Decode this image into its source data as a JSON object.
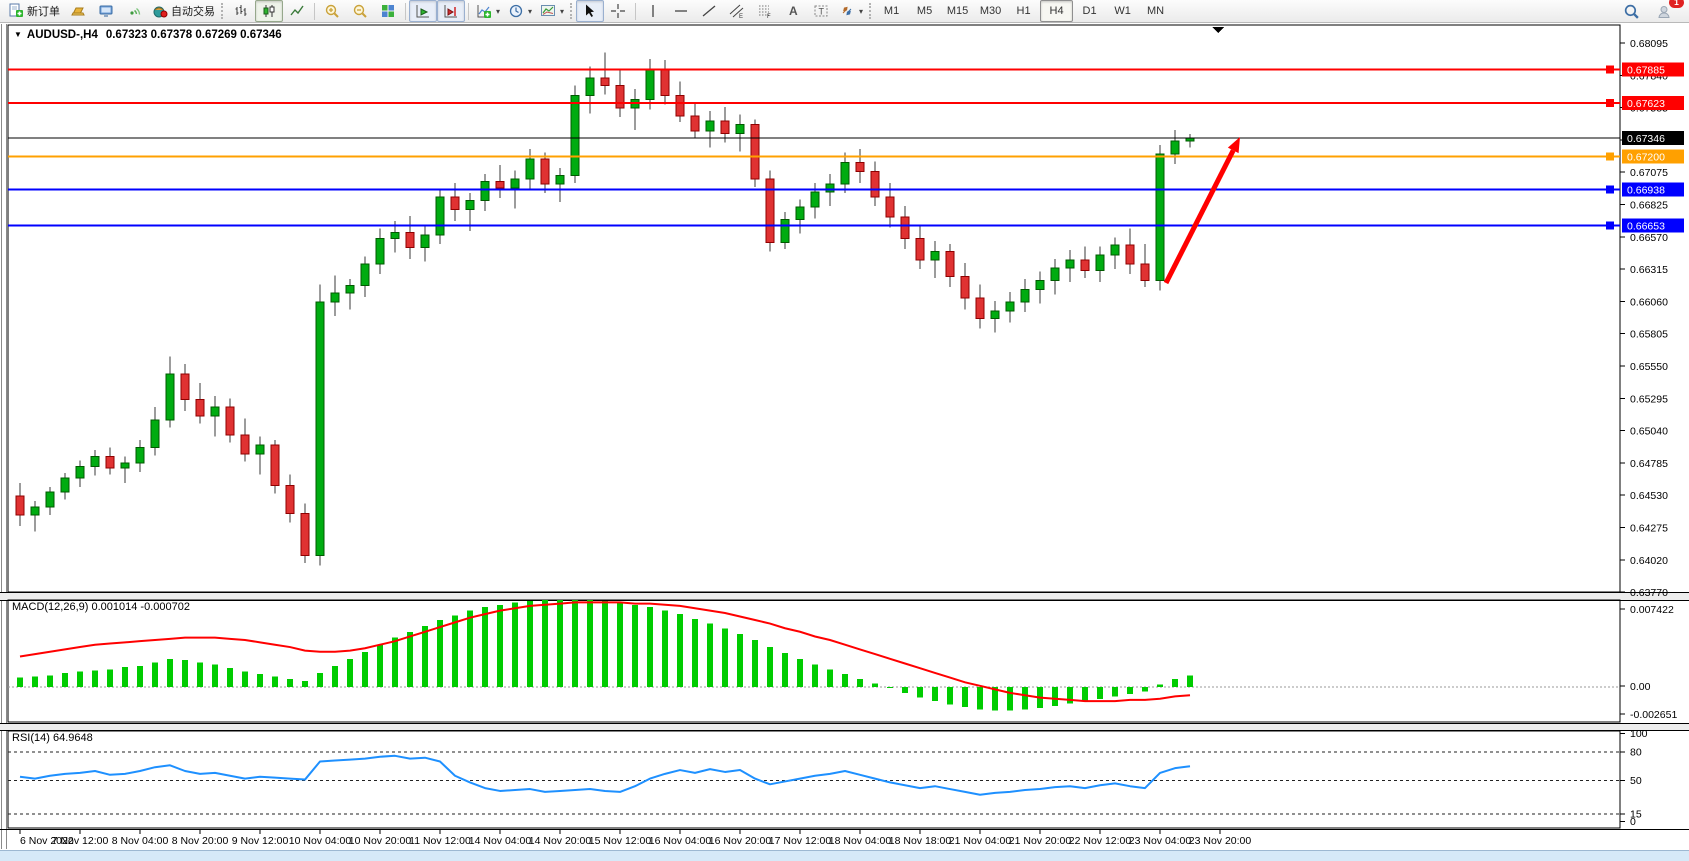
{
  "toolbar": {
    "new_order_label": "新订单",
    "autotrading_label": "自动交易",
    "timeframes": [
      "M1",
      "M5",
      "M15",
      "M30",
      "H1",
      "H4",
      "D1",
      "W1",
      "MN"
    ],
    "active_timeframe": "H4",
    "badge_count": "1"
  },
  "chart": {
    "title_symbol": "AUDUSD-,H4",
    "title_ohlc": "0.67323 0.67378 0.67269 0.67346",
    "dropdown_glyph": "▼"
  },
  "indicators": {
    "macd_label": "MACD(12,26,9) 0.001014 -0.000702",
    "rsi_label": "RSI(14) 64.9648"
  },
  "chart_data": [
    {
      "type": "candlestick",
      "symbol": "AUDUSD-",
      "timeframe": "H4",
      "current_bar": {
        "open": 0.67323,
        "high": 0.67378,
        "low": 0.67269,
        "close": 0.67346
      },
      "y_ticks": [
        "0.68095",
        "0.67840",
        "0.67585",
        "0.67330",
        "0.67075",
        "0.66825",
        "0.66570",
        "0.66315",
        "0.66060",
        "0.65805",
        "0.65550",
        "0.65295",
        "0.65040",
        "0.64785",
        "0.64530",
        "0.64275",
        "0.64020",
        "0.63770"
      ],
      "x_labels": [
        "6 Nov 2022",
        "7 Nov 12:00",
        "8 Nov 04:00",
        "8 Nov 20:00",
        "9 Nov 12:00",
        "10 Nov 04:00",
        "10 Nov 20:00",
        "11 Nov 12:00",
        "14 Nov 04:00",
        "14 Nov 20:00",
        "15 Nov 12:00",
        "16 Nov 04:00",
        "16 Nov 20:00",
        "17 Nov 12:00",
        "18 Nov 04:00",
        "18 Nov 18:00",
        "21 Nov 04:00",
        "21 Nov 20:00",
        "22 Nov 12:00",
        "23 Nov 04:00",
        "23 Nov 20:00"
      ],
      "x_label_step": 4,
      "hlines": [
        {
          "label": "0.67885",
          "price": 0.67885,
          "color": "#FF0000",
          "width": 2,
          "bid": false
        },
        {
          "label": "0.67623",
          "price": 0.67623,
          "color": "#FF0000",
          "width": 2,
          "bid": false
        },
        {
          "label": "0.67346",
          "price": 0.67346,
          "color": "#000000",
          "width": 1,
          "bid": true
        },
        {
          "label": "0.67200",
          "price": 0.672,
          "color": "#FFA000",
          "width": 2,
          "bid": false
        },
        {
          "label": "0.66938",
          "price": 0.66938,
          "color": "#0000FF",
          "width": 2,
          "bid": false
        },
        {
          "label": "0.66653",
          "price": 0.66653,
          "color": "#0000FF",
          "width": 2,
          "bid": false
        }
      ],
      "arrow": {
        "from": [
          1166,
          283
        ],
        "to": [
          1240,
          137
        ],
        "color": "#FF0000"
      },
      "colors": {
        "up": "#00AC11",
        "up_border": "#005a00",
        "down": "#E03232",
        "down_border": "#8f0000",
        "wick": "#3a3a3a"
      },
      "candles": [
        [
          0.6452,
          0.6462,
          0.6428,
          0.6437
        ],
        [
          0.6437,
          0.6448,
          0.6424,
          0.6443
        ],
        [
          0.6443,
          0.6459,
          0.6437,
          0.6455
        ],
        [
          0.6455,
          0.647,
          0.6449,
          0.6466
        ],
        [
          0.6466,
          0.648,
          0.6459,
          0.6475
        ],
        [
          0.6475,
          0.6488,
          0.6468,
          0.6483
        ],
        [
          0.6483,
          0.649,
          0.6469,
          0.6474
        ],
        [
          0.6474,
          0.6483,
          0.6462,
          0.6478
        ],
        [
          0.6478,
          0.6496,
          0.6471,
          0.649
        ],
        [
          0.649,
          0.6522,
          0.6484,
          0.6512
        ],
        [
          0.6512,
          0.6562,
          0.6506,
          0.6548
        ],
        [
          0.6548,
          0.6556,
          0.6519,
          0.6528
        ],
        [
          0.6528,
          0.6541,
          0.6509,
          0.6515
        ],
        [
          0.6515,
          0.6531,
          0.6499,
          0.6522
        ],
        [
          0.6522,
          0.6529,
          0.6494,
          0.65
        ],
        [
          0.65,
          0.6513,
          0.6479,
          0.6485
        ],
        [
          0.6485,
          0.6499,
          0.6469,
          0.6492
        ],
        [
          0.6492,
          0.6496,
          0.6454,
          0.646
        ],
        [
          0.646,
          0.6469,
          0.6431,
          0.6438
        ],
        [
          0.6438,
          0.6446,
          0.6399,
          0.6405
        ],
        [
          0.6405,
          0.6619,
          0.6397,
          0.6605
        ],
        [
          0.6605,
          0.6626,
          0.6594,
          0.6612
        ],
        [
          0.6612,
          0.6623,
          0.6599,
          0.6618
        ],
        [
          0.6618,
          0.6641,
          0.6609,
          0.6635
        ],
        [
          0.6635,
          0.6663,
          0.6627,
          0.6655
        ],
        [
          0.6655,
          0.6669,
          0.6644,
          0.666
        ],
        [
          0.666,
          0.6673,
          0.6639,
          0.6648
        ],
        [
          0.6648,
          0.6666,
          0.6637,
          0.6658
        ],
        [
          0.6658,
          0.6693,
          0.6651,
          0.6688
        ],
        [
          0.6688,
          0.6699,
          0.6669,
          0.6678
        ],
        [
          0.6678,
          0.6691,
          0.6661,
          0.6685
        ],
        [
          0.6685,
          0.6706,
          0.6677,
          0.67
        ],
        [
          0.67,
          0.6713,
          0.6687,
          0.6695
        ],
        [
          0.6695,
          0.6709,
          0.6679,
          0.6702
        ],
        [
          0.6702,
          0.6726,
          0.6694,
          0.6718
        ],
        [
          0.6718,
          0.6723,
          0.6691,
          0.6698
        ],
        [
          0.6698,
          0.6711,
          0.6684,
          0.6705
        ],
        [
          0.6705,
          0.6776,
          0.6699,
          0.6768
        ],
        [
          0.6768,
          0.6791,
          0.6754,
          0.6782
        ],
        [
          0.6782,
          0.6802,
          0.6769,
          0.6776
        ],
        [
          0.6776,
          0.6789,
          0.6751,
          0.6758
        ],
        [
          0.6758,
          0.6773,
          0.6741,
          0.6765
        ],
        [
          0.6765,
          0.6797,
          0.6757,
          0.6788
        ],
        [
          0.6788,
          0.6796,
          0.6761,
          0.6768
        ],
        [
          0.6768,
          0.6779,
          0.6747,
          0.6752
        ],
        [
          0.6752,
          0.6763,
          0.6734,
          0.674
        ],
        [
          0.674,
          0.6756,
          0.6727,
          0.6748
        ],
        [
          0.6748,
          0.6759,
          0.6731,
          0.6738
        ],
        [
          0.6738,
          0.6753,
          0.6724,
          0.6745
        ],
        [
          0.6745,
          0.6749,
          0.6696,
          0.6702
        ],
        [
          0.6702,
          0.6709,
          0.6645,
          0.6652
        ],
        [
          0.6652,
          0.6676,
          0.6647,
          0.667
        ],
        [
          0.667,
          0.6686,
          0.6659,
          0.668
        ],
        [
          0.668,
          0.6699,
          0.6671,
          0.6692
        ],
        [
          0.6692,
          0.6706,
          0.6681,
          0.6698
        ],
        [
          0.6698,
          0.6723,
          0.6691,
          0.6715
        ],
        [
          0.6715,
          0.6726,
          0.6699,
          0.6708
        ],
        [
          0.6708,
          0.6716,
          0.6681,
          0.6688
        ],
        [
          0.6688,
          0.6699,
          0.6664,
          0.6672
        ],
        [
          0.6672,
          0.6681,
          0.6647,
          0.6655
        ],
        [
          0.6655,
          0.6666,
          0.6631,
          0.6638
        ],
        [
          0.6638,
          0.6653,
          0.6624,
          0.6645
        ],
        [
          0.6645,
          0.6651,
          0.6617,
          0.6625
        ],
        [
          0.6625,
          0.6636,
          0.6599,
          0.6608
        ],
        [
          0.6608,
          0.6619,
          0.6584,
          0.6592
        ],
        [
          0.6592,
          0.6606,
          0.6581,
          0.6598
        ],
        [
          0.6598,
          0.6613,
          0.6589,
          0.6605
        ],
        [
          0.6605,
          0.6623,
          0.6597,
          0.6615
        ],
        [
          0.6615,
          0.6629,
          0.6604,
          0.6622
        ],
        [
          0.6622,
          0.6639,
          0.6611,
          0.6632
        ],
        [
          0.6632,
          0.6646,
          0.6621,
          0.6638
        ],
        [
          0.6638,
          0.6649,
          0.6624,
          0.663
        ],
        [
          0.663,
          0.6649,
          0.6621,
          0.6642
        ],
        [
          0.6642,
          0.6656,
          0.6631,
          0.665
        ],
        [
          0.665,
          0.6663,
          0.6627,
          0.6635
        ],
        [
          0.6635,
          0.6651,
          0.6617,
          0.6622
        ],
        [
          0.6622,
          0.6729,
          0.6614,
          0.6722
        ],
        [
          0.6722,
          0.6741,
          0.6714,
          0.6732
        ],
        [
          0.67323,
          0.67378,
          0.67269,
          0.67346
        ]
      ]
    },
    {
      "type": "bar",
      "name": "MACD",
      "params": "12,26,9",
      "value": "0.001014",
      "signal_value": "-0.000702",
      "y_labels": [
        "0.007422",
        "0.00",
        "-0.002651"
      ],
      "colors": {
        "histogram": "#00CC00",
        "signal": "#FF0000"
      },
      "histogram": [
        0.0008,
        0.0009,
        0.001,
        0.0012,
        0.0013,
        0.0014,
        0.0015,
        0.0017,
        0.0018,
        0.0021,
        0.0024,
        0.0023,
        0.0021,
        0.0019,
        0.0016,
        0.0013,
        0.0011,
        0.0009,
        0.0007,
        0.0005,
        0.0012,
        0.0018,
        0.0024,
        0.003,
        0.0036,
        0.0042,
        0.0047,
        0.0052,
        0.0057,
        0.0061,
        0.0065,
        0.0068,
        0.007,
        0.0072,
        0.0073,
        0.0074,
        0.0074,
        0.0074,
        0.0074,
        0.0073,
        0.0072,
        0.007,
        0.0068,
        0.0065,
        0.0062,
        0.0058,
        0.0054,
        0.005,
        0.0045,
        0.004,
        0.0034,
        0.0029,
        0.0024,
        0.0019,
        0.0015,
        0.0011,
        0.0007,
        0.0003,
        -0.0001,
        -0.0005,
        -0.0009,
        -0.0012,
        -0.0015,
        -0.0017,
        -0.0019,
        -0.002,
        -0.002,
        -0.0019,
        -0.0018,
        -0.0016,
        -0.0014,
        -0.0012,
        -0.001,
        -0.0008,
        -0.0006,
        -0.0004,
        0.0002,
        0.0007,
        0.001
      ],
      "signal": [
        0.0026,
        0.0028,
        0.003,
        0.0032,
        0.0034,
        0.0036,
        0.0037,
        0.0038,
        0.0039,
        0.004,
        0.0041,
        0.0042,
        0.0042,
        0.0042,
        0.0041,
        0.004,
        0.0038,
        0.0036,
        0.0034,
        0.0031,
        0.003,
        0.003,
        0.0031,
        0.0033,
        0.0036,
        0.0039,
        0.0043,
        0.0047,
        0.0051,
        0.0055,
        0.0059,
        0.0062,
        0.0065,
        0.0067,
        0.0069,
        0.007,
        0.0071,
        0.0072,
        0.0072,
        0.0072,
        0.0072,
        0.0071,
        0.0071,
        0.007,
        0.0069,
        0.0067,
        0.0065,
        0.0063,
        0.006,
        0.0057,
        0.0054,
        0.005,
        0.0047,
        0.0043,
        0.004,
        0.0036,
        0.0032,
        0.0028,
        0.0024,
        0.002,
        0.0016,
        0.0012,
        0.0008,
        0.0004,
        0.0001,
        -0.0002,
        -0.0005,
        -0.0007,
        -0.0009,
        -0.001,
        -0.0011,
        -0.0012,
        -0.0012,
        -0.0012,
        -0.0011,
        -0.0011,
        -0.001,
        -0.0008,
        -0.0007
      ]
    },
    {
      "type": "line",
      "name": "RSI",
      "params": "14",
      "value": "64.9648",
      "levels": [
        "100",
        "80",
        "50",
        "15",
        "0"
      ],
      "level_lines": [
        80,
        50,
        15
      ],
      "color": "#1E90FF",
      "values": [
        54,
        52,
        55,
        57,
        58,
        60,
        56,
        57,
        60,
        64,
        66,
        60,
        57,
        58,
        55,
        52,
        54,
        53,
        52,
        51,
        70,
        71,
        72,
        73,
        75,
        76,
        73,
        74,
        70,
        55,
        48,
        42,
        39,
        40,
        41,
        38,
        39,
        40,
        41,
        39,
        38,
        44,
        52,
        57,
        61,
        58,
        62,
        59,
        61,
        52,
        46,
        49,
        52,
        55,
        57,
        60,
        56,
        52,
        48,
        45,
        42,
        44,
        41,
        38,
        35,
        37,
        38,
        40,
        41,
        43,
        44,
        42,
        45,
        47,
        44,
        42,
        58,
        63,
        65
      ]
    }
  ]
}
